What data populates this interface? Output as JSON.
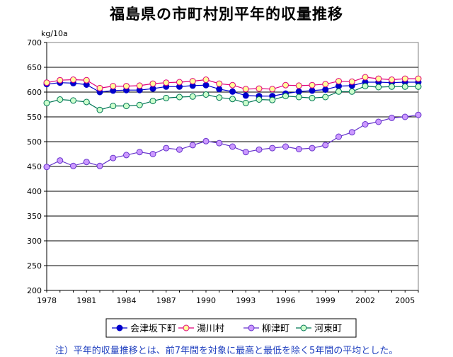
{
  "chart_data": {
    "type": "line",
    "title": "福島県の市町村別平年的収量推移",
    "ylabel": "kg/10a",
    "xlabel": "",
    "ylim": [
      200,
      700
    ],
    "yticks": [
      200,
      250,
      300,
      350,
      400,
      450,
      500,
      550,
      600,
      650,
      700
    ],
    "xlim": [
      1978,
      2006
    ],
    "xticks": [
      1978,
      1981,
      1984,
      1987,
      1990,
      1993,
      1996,
      1999,
      2002,
      2005
    ],
    "x": [
      1978,
      1979,
      1980,
      1981,
      1982,
      1983,
      1984,
      1985,
      1986,
      1987,
      1988,
      1989,
      1990,
      1991,
      1992,
      1993,
      1994,
      1995,
      1996,
      1997,
      1998,
      1999,
      2000,
      2001,
      2002,
      2003,
      2004,
      2005,
      2006
    ],
    "series": [
      {
        "name": "会津坂下町",
        "line_color": "#0000cc",
        "marker_fill": "#0000cc",
        "values": [
          616,
          619,
          618,
          615,
          600,
          603,
          604,
          604,
          607,
          611,
          611,
          613,
          614,
          606,
          601,
          593,
          592,
          592,
          597,
          601,
          603,
          605,
          612,
          613,
          620,
          620,
          619,
          620,
          620
        ]
      },
      {
        "name": "湯川村",
        "line_color": "#e0007a",
        "marker_fill": "#ffff99",
        "values": [
          619,
          624,
          625,
          624,
          608,
          612,
          612,
          613,
          617,
          619,
          620,
          622,
          625,
          617,
          614,
          606,
          607,
          606,
          614,
          613,
          614,
          616,
          622,
          621,
          630,
          627,
          625,
          627,
          627
        ]
      },
      {
        "name": "柳津町",
        "line_color": "#6633cc",
        "marker_fill": "#cc99ff",
        "values": [
          449,
          462,
          451,
          459,
          451,
          467,
          473,
          479,
          475,
          487,
          484,
          493,
          501,
          497,
          490,
          479,
          484,
          487,
          490,
          485,
          487,
          493,
          510,
          519,
          535,
          540,
          548,
          550,
          554
        ]
      },
      {
        "name": "河東町",
        "line_color": "#007755",
        "marker_fill": "#ccffcc",
        "values": [
          578,
          585,
          583,
          580,
          564,
          572,
          572,
          574,
          582,
          588,
          590,
          591,
          595,
          589,
          586,
          578,
          585,
          584,
          592,
          590,
          588,
          590,
          601,
          601,
          612,
          610,
          611,
          611,
          611
        ]
      }
    ]
  },
  "footnote": "注）平年的収量推移とは、前7年間を対象に最高と最低を除く5年間の平均とした。"
}
